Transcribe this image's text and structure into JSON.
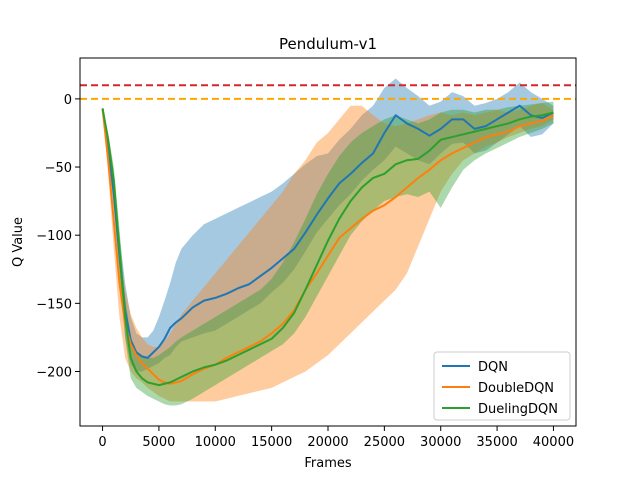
{
  "chart_data": {
    "type": "line",
    "title": "Pendulum-v1",
    "xlabel": "Frames",
    "ylabel": "Q Value",
    "xlim": [
      -2000,
      42000
    ],
    "ylim": [
      -240,
      30
    ],
    "xticks": [
      0,
      5000,
      10000,
      15000,
      20000,
      25000,
      30000,
      35000,
      40000
    ],
    "yticks": [
      -200,
      -150,
      -100,
      -50,
      0
    ],
    "legend_position": "lower-right",
    "reference_lines": [
      {
        "y": 10,
        "color": "#d62728",
        "style": "dashed"
      },
      {
        "y": 0,
        "color": "#ffa500",
        "style": "dashed"
      }
    ],
    "series": [
      {
        "name": "DQN",
        "color": "#1f77b4",
        "band_opacity": 0.4,
        "x": [
          0,
          500,
          1000,
          1500,
          2000,
          2500,
          3000,
          3500,
          4000,
          4500,
          5000,
          5500,
          6000,
          6500,
          7000,
          8000,
          9000,
          10000,
          11000,
          12000,
          13000,
          14000,
          15000,
          16000,
          17000,
          18000,
          19000,
          20000,
          21000,
          22000,
          23000,
          24000,
          25000,
          26000,
          27000,
          28000,
          29000,
          30000,
          31000,
          32000,
          33000,
          34000,
          35000,
          36000,
          37000,
          38000,
          39000,
          40000
        ],
        "mean": [
          -7,
          -35,
          -70,
          -115,
          -155,
          -177,
          -186,
          -189,
          -190,
          -186,
          -182,
          -176,
          -168,
          -164,
          -161,
          -153,
          -148,
          -146,
          -143,
          -139,
          -136,
          -130,
          -124,
          -117,
          -110,
          -98,
          -85,
          -73,
          -62,
          -55,
          -47,
          -40,
          -25,
          -12,
          -18,
          -22,
          -27,
          -22,
          -15,
          -15,
          -22,
          -20,
          -15,
          -10,
          -5,
          -12,
          -14,
          -10
        ],
        "lower": [
          -7,
          -40,
          -80,
          -130,
          -175,
          -195,
          -200,
          -200,
          -198,
          -196,
          -194,
          -190,
          -188,
          -182,
          -178,
          -175,
          -172,
          -170,
          -165,
          -160,
          -155,
          -150,
          -142,
          -135,
          -125,
          -112,
          -98,
          -88,
          -78,
          -70,
          -60,
          -52,
          -45,
          -35,
          -40,
          -45,
          -48,
          -40,
          -33,
          -32,
          -40,
          -38,
          -32,
          -26,
          -20,
          -28,
          -26,
          -18
        ],
        "upper": [
          -7,
          -30,
          -60,
          -100,
          -135,
          -160,
          -172,
          -175,
          -175,
          -170,
          -160,
          -148,
          -135,
          -120,
          -110,
          -100,
          -92,
          -88,
          -84,
          -80,
          -76,
          -72,
          -68,
          -62,
          -55,
          -48,
          -42,
          -40,
          -30,
          -22,
          -12,
          -5,
          8,
          15,
          8,
          2,
          -5,
          -2,
          5,
          2,
          -5,
          -3,
          0,
          5,
          12,
          5,
          0,
          -5
        ]
      },
      {
        "name": "DoubleDQN",
        "color": "#ff7f0e",
        "band_opacity": 0.4,
        "x": [
          0,
          500,
          1000,
          1500,
          2000,
          2500,
          3000,
          3500,
          4000,
          4500,
          5000,
          5500,
          6000,
          6500,
          7000,
          8000,
          9000,
          10000,
          11000,
          12000,
          13000,
          14000,
          15000,
          16000,
          17000,
          18000,
          19000,
          20000,
          21000,
          22000,
          23000,
          24000,
          25000,
          26000,
          27000,
          28000,
          29000,
          30000,
          31000,
          32000,
          33000,
          34000,
          35000,
          36000,
          37000,
          38000,
          39000,
          40000
        ],
        "mean": [
          -7,
          -45,
          -90,
          -135,
          -165,
          -180,
          -188,
          -194,
          -198,
          -202,
          -206,
          -208,
          -209,
          -208,
          -207,
          -202,
          -198,
          -195,
          -190,
          -186,
          -182,
          -178,
          -172,
          -165,
          -155,
          -140,
          -128,
          -115,
          -102,
          -95,
          -88,
          -82,
          -78,
          -72,
          -65,
          -58,
          -52,
          -45,
          -40,
          -36,
          -32,
          -28,
          -26,
          -24,
          -20,
          -18,
          -16,
          -12
        ],
        "lower": [
          -7,
          -55,
          -110,
          -160,
          -190,
          -200,
          -205,
          -208,
          -212,
          -215,
          -218,
          -220,
          -222,
          -222,
          -222,
          -222,
          -222,
          -222,
          -220,
          -218,
          -216,
          -214,
          -212,
          -208,
          -204,
          -200,
          -194,
          -188,
          -180,
          -172,
          -164,
          -156,
          -148,
          -140,
          -128,
          -108,
          -88,
          -68,
          -55,
          -45,
          -40,
          -35,
          -32,
          -28,
          -25,
          -22,
          -20,
          -15
        ],
        "upper": [
          -7,
          -35,
          -70,
          -110,
          -140,
          -158,
          -168,
          -175,
          -180,
          -182,
          -182,
          -178,
          -172,
          -165,
          -158,
          -148,
          -138,
          -128,
          -118,
          -108,
          -98,
          -88,
          -78,
          -68,
          -55,
          -45,
          -32,
          -25,
          -15,
          -5,
          -5,
          -12,
          -18,
          -20,
          -18,
          -15,
          -12,
          -10,
          -12,
          -10,
          -12,
          -10,
          -8,
          -10,
          -8,
          -5,
          -3,
          -8
        ]
      },
      {
        "name": "DuelingDQN",
        "color": "#2ca02c",
        "band_opacity": 0.4,
        "x": [
          0,
          500,
          1000,
          1500,
          2000,
          2500,
          3000,
          3500,
          4000,
          4500,
          5000,
          5500,
          6000,
          6500,
          7000,
          8000,
          9000,
          10000,
          11000,
          12000,
          13000,
          14000,
          15000,
          16000,
          17000,
          18000,
          19000,
          20000,
          21000,
          22000,
          23000,
          24000,
          25000,
          26000,
          27000,
          28000,
          29000,
          30000,
          31000,
          32000,
          33000,
          34000,
          35000,
          36000,
          37000,
          38000,
          39000,
          40000
        ],
        "mean": [
          -7,
          -30,
          -60,
          -110,
          -160,
          -190,
          -200,
          -205,
          -208,
          -209,
          -210,
          -209,
          -208,
          -206,
          -204,
          -200,
          -197,
          -195,
          -192,
          -188,
          -184,
          -180,
          -176,
          -168,
          -157,
          -140,
          -122,
          -104,
          -88,
          -75,
          -65,
          -58,
          -55,
          -48,
          -45,
          -44,
          -38,
          -30,
          -28,
          -26,
          -24,
          -22,
          -20,
          -18,
          -15,
          -13,
          -12,
          -10
        ],
        "lower": [
          -7,
          -35,
          -70,
          -125,
          -175,
          -205,
          -212,
          -215,
          -218,
          -220,
          -222,
          -224,
          -225,
          -225,
          -224,
          -220,
          -215,
          -210,
          -205,
          -200,
          -195,
          -190,
          -185,
          -180,
          -172,
          -160,
          -145,
          -130,
          -115,
          -100,
          -90,
          -82,
          -75,
          -72,
          -70,
          -72,
          -68,
          -80,
          -65,
          -52,
          -45,
          -40,
          -36,
          -32,
          -28,
          -25,
          -22,
          -18
        ],
        "upper": [
          -7,
          -25,
          -50,
          -95,
          -145,
          -175,
          -185,
          -188,
          -190,
          -190,
          -188,
          -185,
          -182,
          -178,
          -175,
          -170,
          -165,
          -160,
          -155,
          -150,
          -145,
          -140,
          -132,
          -120,
          -105,
          -88,
          -70,
          -55,
          -42,
          -32,
          -25,
          -20,
          -15,
          -12,
          -15,
          -18,
          -15,
          -10,
          -8,
          -8,
          -10,
          -8,
          -8,
          -6,
          -5,
          -4,
          -3,
          -2
        ]
      }
    ]
  }
}
